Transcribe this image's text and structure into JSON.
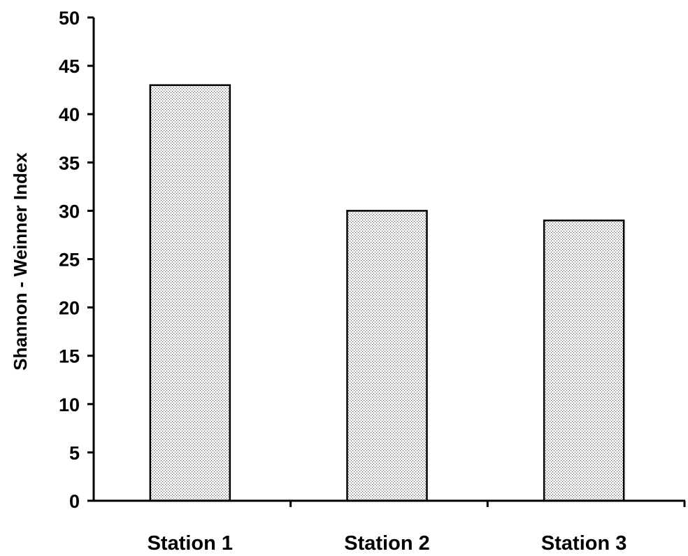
{
  "chart_data": {
    "type": "bar",
    "title": "",
    "xlabel": "",
    "ylabel": "Shannon - Weinner Index",
    "categories": [
      "Station 1",
      "Station 2",
      "Station 3"
    ],
    "values": [
      43,
      30,
      29
    ],
    "ylim": [
      0,
      50
    ],
    "yticks": [
      0,
      5,
      10,
      15,
      20,
      25,
      30,
      35,
      40,
      45,
      50
    ],
    "grid": false,
    "legend": "none",
    "bar_fill": "#e6e6e6",
    "bar_pattern": "stipple",
    "bar_stroke": "#000000",
    "axis_color": "#000000"
  }
}
